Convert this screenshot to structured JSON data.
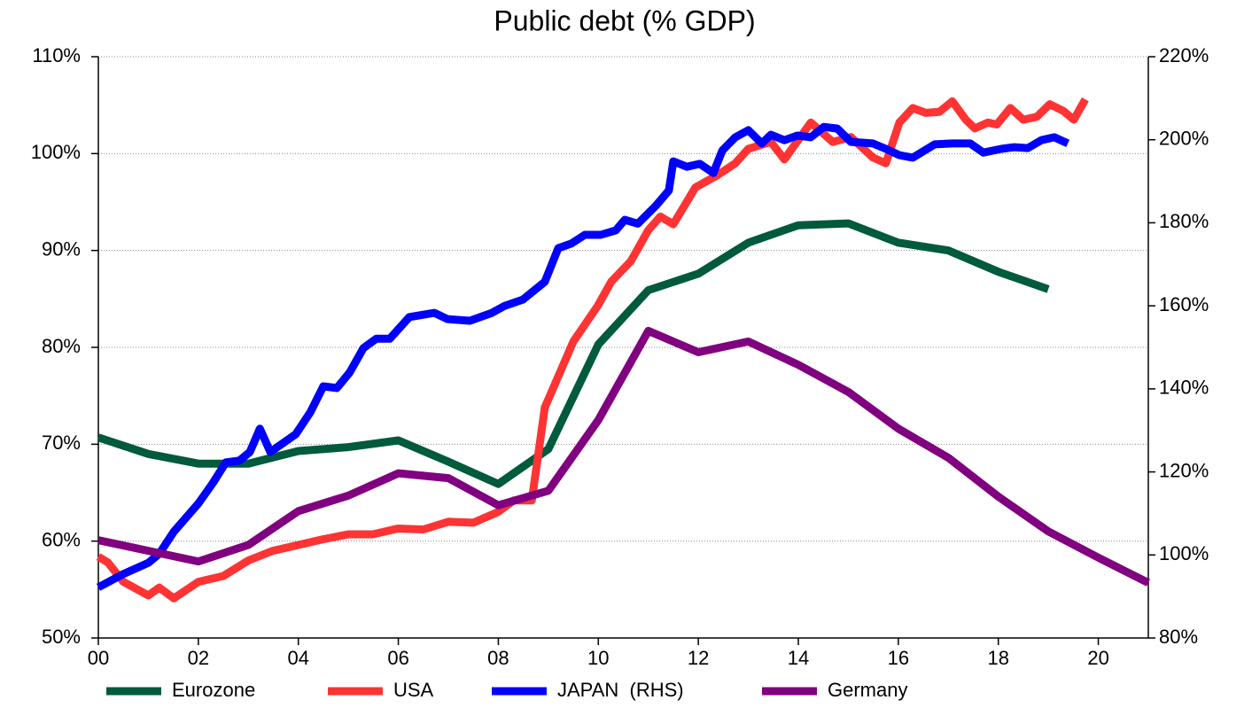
{
  "chart_data": {
    "type": "line",
    "title": "Public debt (% GDP)",
    "legend": "bottom",
    "grid": true,
    "xlim": [
      0,
      21
    ],
    "xticks": [
      {
        "value": 0,
        "label": "00"
      },
      {
        "value": 2,
        "label": "02"
      },
      {
        "value": 4,
        "label": "04"
      },
      {
        "value": 6,
        "label": "06"
      },
      {
        "value": 8,
        "label": "08"
      },
      {
        "value": 10,
        "label": "10"
      },
      {
        "value": 12,
        "label": "12"
      },
      {
        "value": 14,
        "label": "14"
      },
      {
        "value": 16,
        "label": "16"
      },
      {
        "value": 18,
        "label": "18"
      },
      {
        "value": 20,
        "label": "20"
      }
    ],
    "ylim": [
      50,
      110
    ],
    "yticks": [
      {
        "value": 50,
        "label": "50%"
      },
      {
        "value": 60,
        "label": "60%"
      },
      {
        "value": 70,
        "label": "70%"
      },
      {
        "value": 80,
        "label": "80%"
      },
      {
        "value": 90,
        "label": "90%"
      },
      {
        "value": 100,
        "label": "100%"
      },
      {
        "value": 110,
        "label": "110%"
      }
    ],
    "y2lim": [
      80,
      220
    ],
    "y2ticks": [
      {
        "value": 80,
        "label": "80%"
      },
      {
        "value": 100,
        "label": "100%"
      },
      {
        "value": 120,
        "label": "120%"
      },
      {
        "value": 140,
        "label": "140%"
      },
      {
        "value": 160,
        "label": "160%"
      },
      {
        "value": 180,
        "label": "180%"
      },
      {
        "value": 200,
        "label": "200%"
      },
      {
        "value": 220,
        "label": "220%"
      }
    ],
    "series": [
      {
        "name": "Eurozone",
        "color": "#005a3c",
        "x": [
          0,
          1,
          2,
          3,
          4,
          5,
          6,
          7,
          8,
          9,
          10,
          11,
          12,
          13,
          14,
          15,
          16,
          17,
          18,
          19
        ],
        "values": [
          70.7,
          69,
          68,
          68,
          69.3,
          69.7,
          70.4,
          68.2,
          65.9,
          69.5,
          80.3,
          85.9,
          87.6,
          90.8,
          92.6,
          92.8,
          90.8,
          90,
          87.8,
          86
        ]
      },
      {
        "name": "USA",
        "color": "#ff3333",
        "x": [
          0,
          0.19,
          0.5,
          1,
          1.22,
          1.51,
          2,
          2.5,
          3,
          3.49,
          4,
          4.5,
          5,
          5.49,
          5.99,
          6.5,
          7,
          7.5,
          7.99,
          8.31,
          8.67,
          8.93,
          9.5,
          9.99,
          10.26,
          10.65,
          11,
          11.24,
          11.5,
          11.94,
          12.39,
          12.74,
          13,
          13.45,
          13.72,
          14.25,
          14.69,
          15.05,
          15.49,
          15.75,
          16.02,
          16.29,
          16.55,
          16.82,
          17.08,
          17.35,
          17.53,
          17.79,
          17.97,
          18.24,
          18.5,
          18.77,
          19.03,
          19.3,
          19.51,
          19.74
        ],
        "values": [
          58.4,
          57.8,
          55.8,
          54.4,
          55.2,
          54.1,
          55.8,
          56.4,
          58,
          59,
          59.6,
          60.2,
          60.7,
          60.7,
          61.3,
          61.2,
          62,
          61.9,
          63,
          64.2,
          64.2,
          73.8,
          80.6,
          84.3,
          86.8,
          88.9,
          92.1,
          93.5,
          92.7,
          96.5,
          97.8,
          99,
          100.5,
          101.2,
          99.4,
          103.2,
          101.2,
          101.7,
          99.6,
          99,
          103.2,
          104.7,
          104.2,
          104.3,
          105.4,
          103.5,
          102.6,
          103.2,
          103,
          104.7,
          103.5,
          103.8,
          105.1,
          104.4,
          103.5,
          105.6
        ]
      },
      {
        "name": "JAPAN  (RHS)",
        "color": "#0000ff",
        "axis": "y2",
        "x": [
          0,
          0.5,
          1,
          1.22,
          1.51,
          2,
          2.29,
          2.55,
          2.82,
          3.03,
          3.23,
          3.44,
          3.95,
          4.24,
          4.5,
          4.77,
          5.03,
          5.3,
          5.56,
          5.83,
          6.22,
          6.72,
          6.98,
          7.43,
          7.87,
          8.13,
          8.49,
          8.93,
          9.2,
          9.46,
          9.73,
          10.05,
          10.35,
          10.53,
          10.79,
          11.15,
          11.41,
          11.5,
          11.77,
          12.03,
          12.3,
          12.48,
          12.74,
          13,
          13.27,
          13.45,
          13.72,
          13.98,
          14.25,
          14.51,
          14.78,
          15.05,
          15.49,
          15.75,
          16.02,
          16.29,
          16.73,
          17.08,
          17.44,
          17.7,
          18.06,
          18.32,
          18.59,
          18.86,
          19.12,
          19.39
        ],
        "values": [
          92.2,
          95.4,
          98.1,
          100.3,
          105.6,
          112.4,
          117.3,
          122.3,
          122.7,
          124.8,
          130.4,
          124.8,
          129.1,
          134.4,
          140.6,
          140.2,
          144,
          149.8,
          152.1,
          152.1,
          157.3,
          158.3,
          156.8,
          156.4,
          158.3,
          160,
          161.5,
          165.8,
          173.9,
          175,
          177.1,
          177.1,
          178.2,
          180.7,
          179.8,
          184.1,
          187.8,
          194.8,
          193.5,
          194.2,
          192,
          197.4,
          200.6,
          202.3,
          199.1,
          201.2,
          199.9,
          201,
          200.6,
          203.1,
          202.7,
          199.5,
          199.1,
          197.8,
          196.3,
          195.7,
          198.9,
          199.1,
          199.1,
          196.9,
          197.8,
          198.2,
          198,
          199.9,
          200.6,
          199.1
        ]
      },
      {
        "name": "Germany",
        "color": "#800080",
        "x": [
          0,
          1,
          2,
          3,
          4,
          5,
          6,
          7,
          8,
          9,
          10,
          11,
          12,
          13,
          14,
          15,
          16,
          17,
          18,
          19,
          20,
          21
        ],
        "values": [
          60.1,
          59,
          57.9,
          59.6,
          63.1,
          64.7,
          67,
          66.5,
          63.7,
          65.2,
          72.5,
          81.7,
          79.5,
          80.6,
          78.2,
          75.4,
          71.6,
          68.6,
          64.6,
          61,
          58.3,
          55.7
        ]
      }
    ]
  }
}
